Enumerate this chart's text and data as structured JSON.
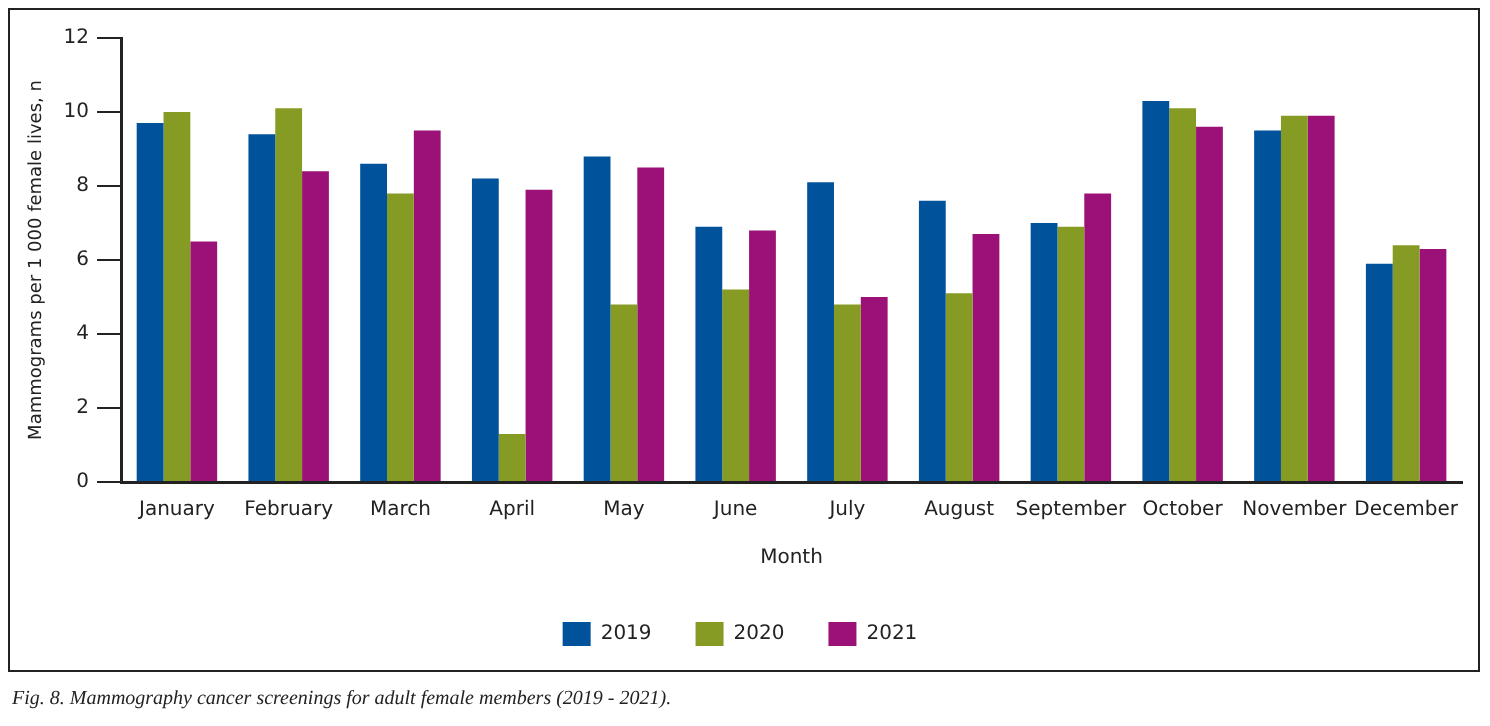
{
  "chart_data": {
    "type": "bar",
    "xlabel": "Month",
    "ylabel": "Mammograms per 1 000 female lives, n",
    "categories": [
      "January",
      "February",
      "March",
      "April",
      "May",
      "June",
      "July",
      "August",
      "September",
      "October",
      "November",
      "December"
    ],
    "series": [
      {
        "name": "2019",
        "color": "#00529b",
        "values": [
          9.7,
          9.4,
          8.6,
          8.2,
          8.8,
          6.9,
          8.1,
          7.6,
          7.0,
          10.3,
          9.5,
          5.9
        ]
      },
      {
        "name": "2020",
        "color": "#869b24",
        "values": [
          10.0,
          10.1,
          7.8,
          1.3,
          4.8,
          5.2,
          4.8,
          5.1,
          6.9,
          10.1,
          9.9,
          6.4
        ]
      },
      {
        "name": "2021",
        "color": "#9b1177",
        "values": [
          6.5,
          8.4,
          9.5,
          7.9,
          8.5,
          6.8,
          5.0,
          6.7,
          7.8,
          9.6,
          9.9,
          6.3
        ]
      }
    ],
    "ylim": [
      0,
      12
    ],
    "yticks": [
      0,
      2,
      4,
      6,
      8,
      10,
      12
    ],
    "grid": false,
    "legend": "bottom",
    "annotations": [
      "Fig. 8. Mammography cancer screenings for adult female members (2019 - 2021)."
    ]
  }
}
